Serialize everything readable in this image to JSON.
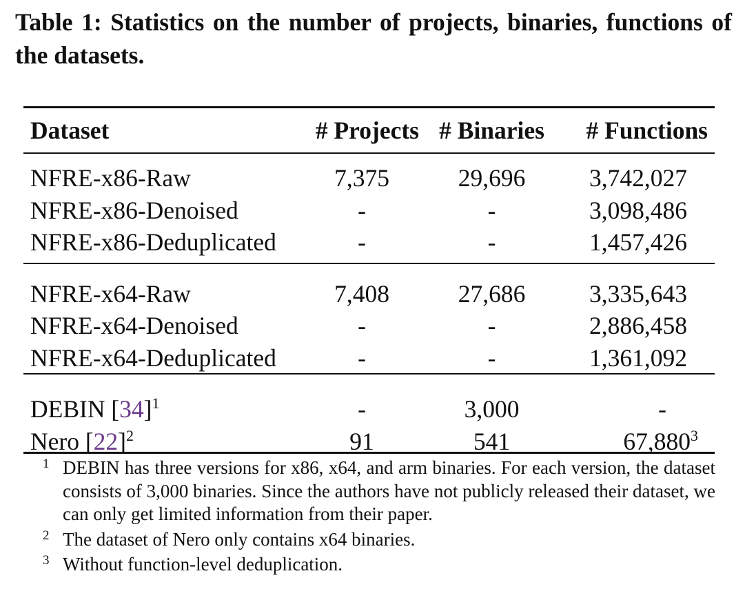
{
  "caption": "Table 1: Statistics on the number of projects, binaries, func­tions of the datasets.",
  "table": {
    "headers": [
      "Dataset",
      "# Projects",
      "# Binaries",
      "# Functions"
    ],
    "groups": [
      [
        {
          "name": "NFRE-x86-Raw",
          "projects": "7,375",
          "binaries": "29,696",
          "functions": "3,742,027"
        },
        {
          "name": "NFRE-x86-Denoised",
          "projects": "-",
          "binaries": "-",
          "functions": "3,098,486"
        },
        {
          "name": "NFRE-x86-Deduplicated",
          "projects": "-",
          "binaries": "-",
          "functions": "1,457,426"
        }
      ],
      [
        {
          "name": "NFRE-x64-Raw",
          "projects": "7,408",
          "binaries": "27,686",
          "functions": "3,335,643"
        },
        {
          "name": "NFRE-x64-Denoised",
          "projects": "-",
          "binaries": "-",
          "functions": "2,886,458"
        },
        {
          "name": "NFRE-x64-Deduplicated",
          "projects": "-",
          "binaries": "-",
          "functions": "1,361,092"
        }
      ],
      [
        {
          "name": "DEBIN",
          "cite": "34",
          "sup": "1",
          "projects": "-",
          "binaries": "3,000",
          "functions": "-"
        },
        {
          "name": "Nero",
          "cite": "22",
          "sup": "2",
          "projects": "91",
          "binaries": "541",
          "functions": "67,880",
          "functions_sup": "3"
        }
      ]
    ]
  },
  "footnotes": [
    {
      "mark": "1",
      "text": "DEBIN has three versions for x86, x64, and arm binaries. For each version, the dataset consists of 3,000 binaries. Since the authors have not publicly released their dataset, we can only get limited information from their paper."
    },
    {
      "mark": "2",
      "text": "The dataset of Nero only contains x64 binaries."
    },
    {
      "mark": "3",
      "text": "Without function-level deduplication."
    }
  ]
}
